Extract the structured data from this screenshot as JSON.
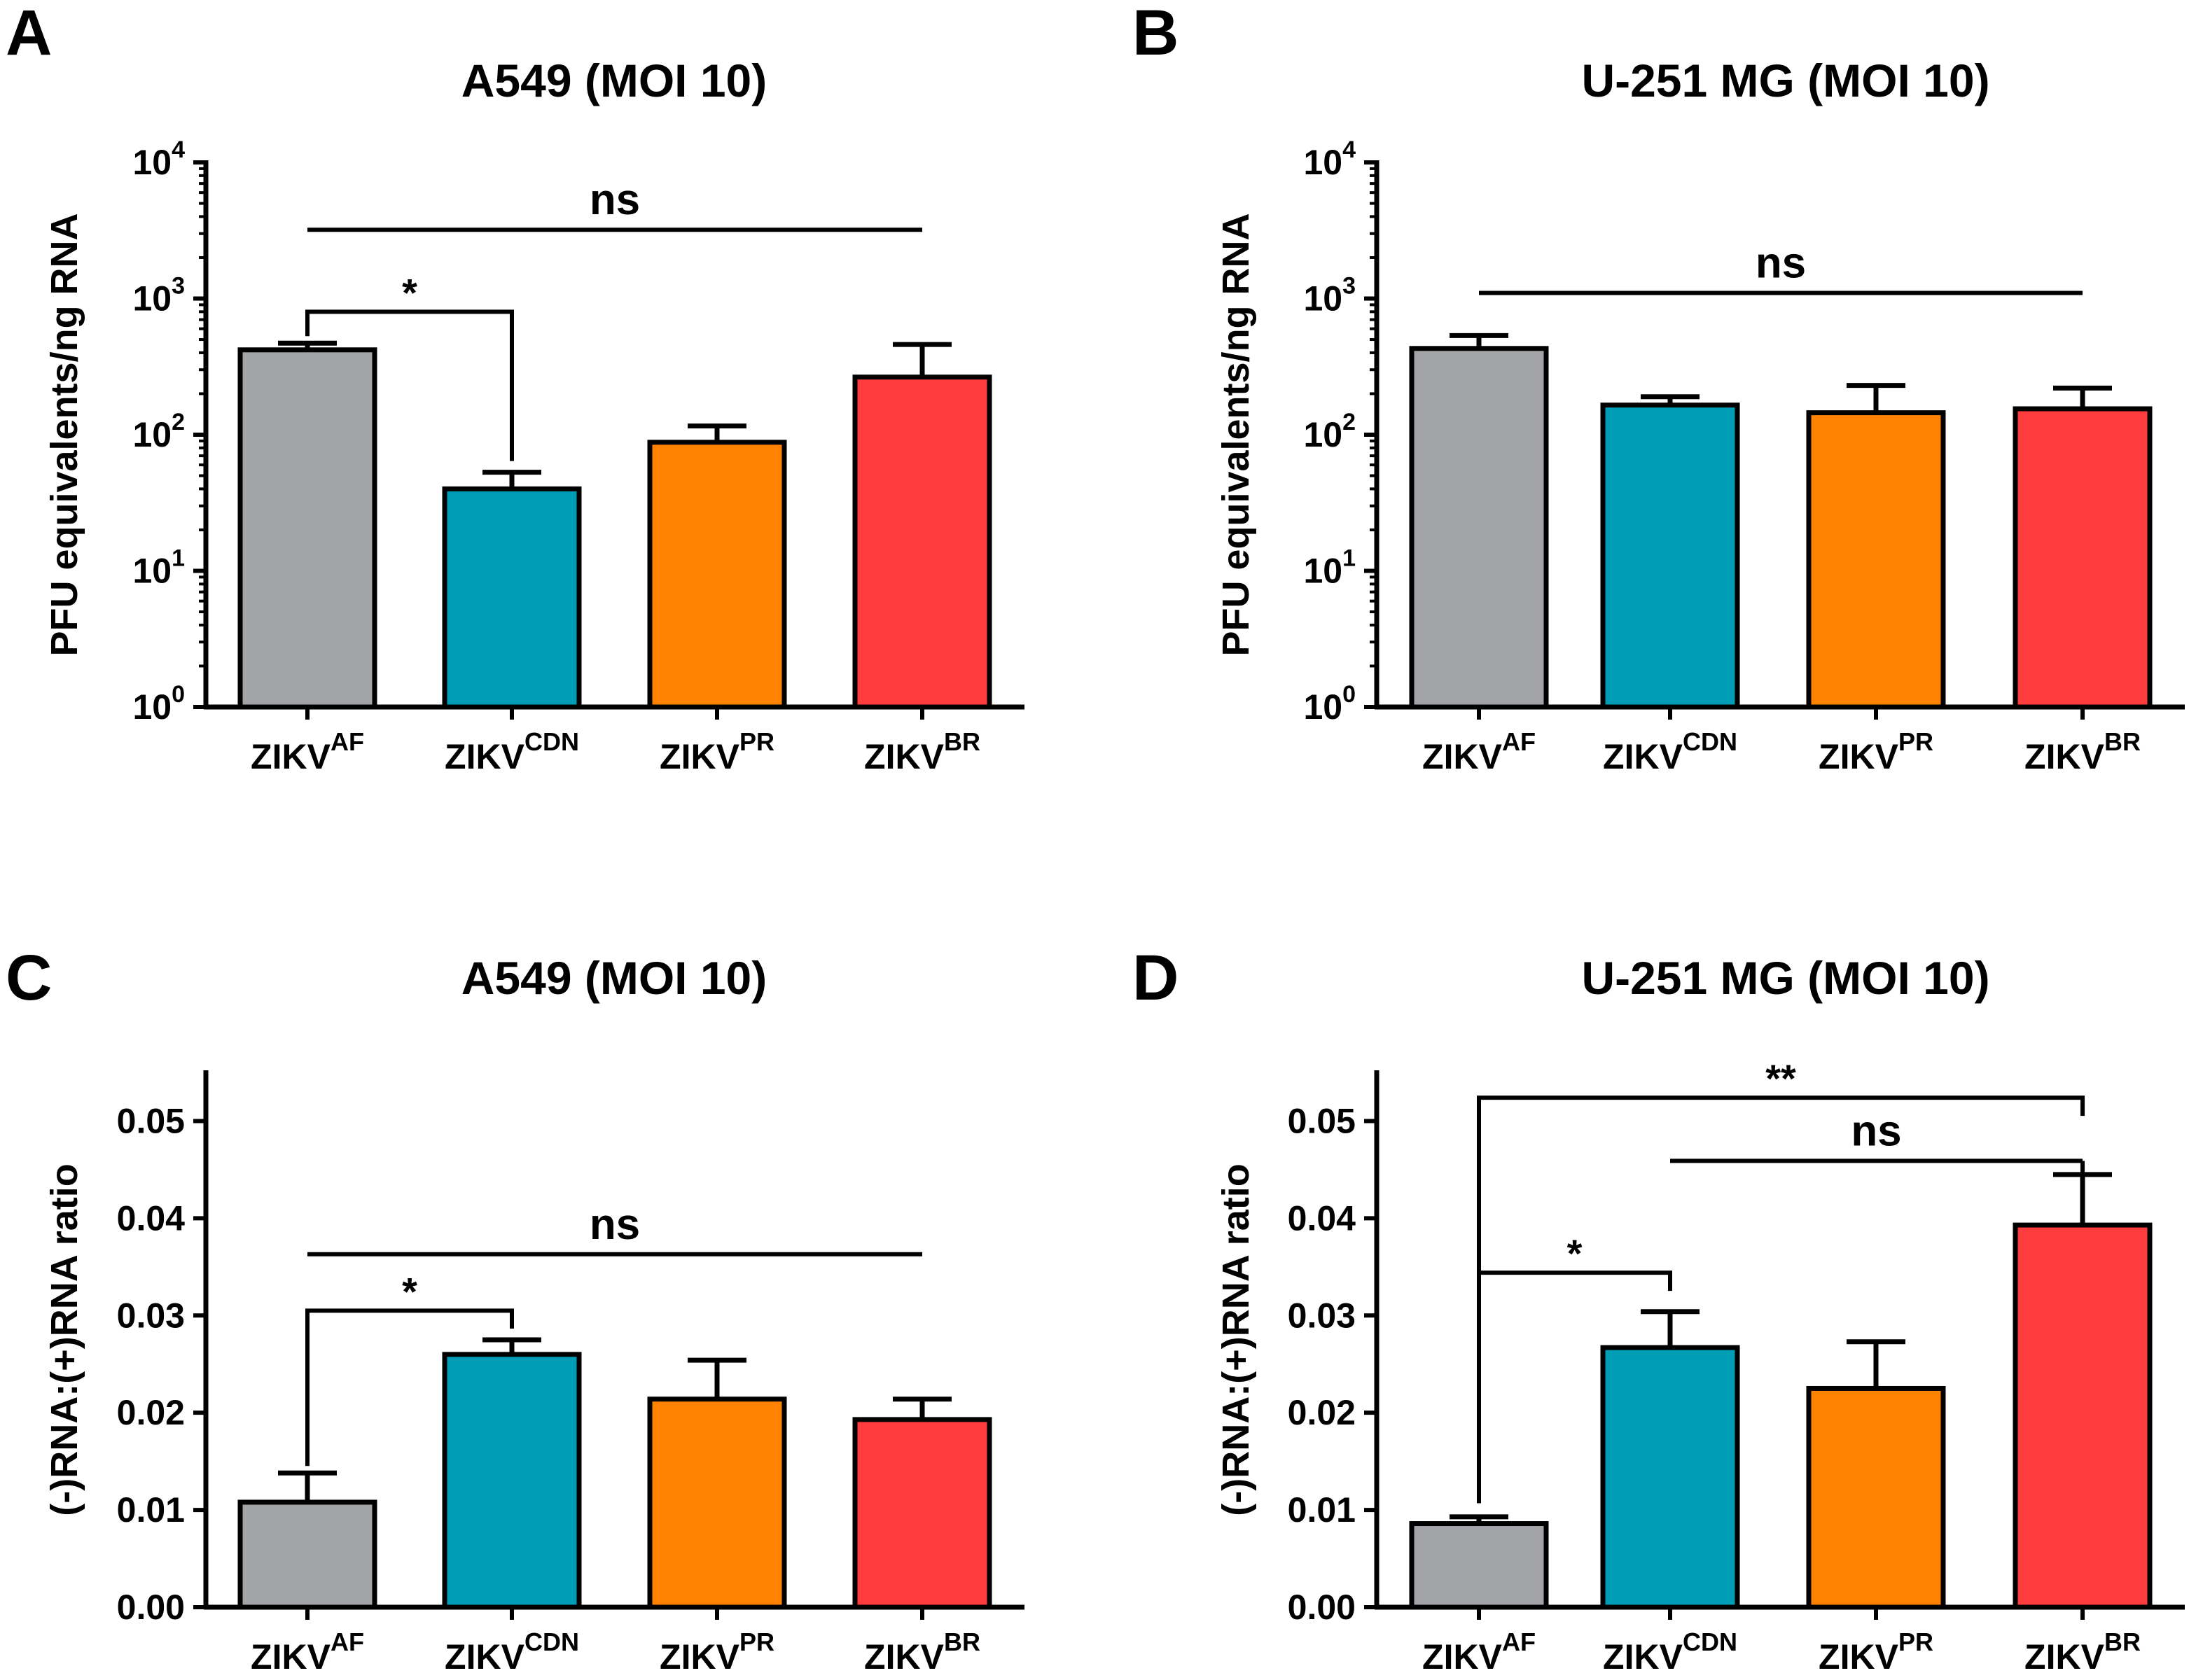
{
  "colors": {
    "ZIKV_AF": "#a3a4a8",
    "ZIKV_CDN": "#009db6",
    "ZIKV_PR": "#ff8300",
    "ZIKV_BR": "#ff3c3e",
    "axis": "#000000"
  },
  "chart_data": [
    {
      "panel": "A",
      "type": "bar",
      "title": "A549 (MOI 10)",
      "ylabel": "PFU equivalents/ng RNA",
      "xlabel": "",
      "yscale": "log",
      "ylim": [
        1,
        10000
      ],
      "yticks": [
        1,
        10,
        100,
        1000,
        10000
      ],
      "ytick_labels": [
        {
          "base": "10",
          "exp": "0"
        },
        {
          "base": "10",
          "exp": "1"
        },
        {
          "base": "10",
          "exp": "2"
        },
        {
          "base": "10",
          "exp": "3"
        },
        {
          "base": "10",
          "exp": "4"
        }
      ],
      "categories": [
        {
          "key": "ZIKV_AF",
          "base": "ZIKV",
          "sup": "AF"
        },
        {
          "key": "ZIKV_CDN",
          "base": "ZIKV",
          "sup": "CDN"
        },
        {
          "key": "ZIKV_PR",
          "base": "ZIKV",
          "sup": "PR"
        },
        {
          "key": "ZIKV_BR",
          "base": "ZIKV",
          "sup": "BR"
        }
      ],
      "values": [
        420,
        40,
        88,
        265
      ],
      "errors": [
        50,
        13,
        28,
        195
      ],
      "significance": [
        {
          "from": 0,
          "to": 1,
          "label": "*",
          "y": 800,
          "style": "bracket"
        },
        {
          "from": 0,
          "to": 3,
          "label": "ns",
          "y": 3200,
          "style": "line"
        }
      ]
    },
    {
      "panel": "B",
      "type": "bar",
      "title": "U-251 MG (MOI 10)",
      "ylabel": "PFU equivalents/ng RNA",
      "xlabel": "",
      "yscale": "log",
      "ylim": [
        1,
        10000
      ],
      "yticks": [
        1,
        10,
        100,
        1000,
        10000
      ],
      "ytick_labels": [
        {
          "base": "10",
          "exp": "0"
        },
        {
          "base": "10",
          "exp": "1"
        },
        {
          "base": "10",
          "exp": "2"
        },
        {
          "base": "10",
          "exp": "3"
        },
        {
          "base": "10",
          "exp": "4"
        }
      ],
      "categories": [
        {
          "key": "ZIKV_AF",
          "base": "ZIKV",
          "sup": "AF"
        },
        {
          "key": "ZIKV_CDN",
          "base": "ZIKV",
          "sup": "CDN"
        },
        {
          "key": "ZIKV_PR",
          "base": "ZIKV",
          "sup": "PR"
        },
        {
          "key": "ZIKV_BR",
          "base": "ZIKV",
          "sup": "BR"
        }
      ],
      "values": [
        430,
        165,
        145,
        155
      ],
      "errors": [
        105,
        25,
        85,
        65
      ],
      "significance": [
        {
          "from": 0,
          "to": 3,
          "label": "ns",
          "y": 1100,
          "style": "line"
        }
      ]
    },
    {
      "panel": "C",
      "type": "bar",
      "title": "A549 (MOI 10)",
      "ylabel": "(-)RNA:(+)RNA ratio",
      "xlabel": "",
      "yscale": "linear",
      "ylim": [
        0,
        0.055
      ],
      "yticks": [
        0,
        0.01,
        0.02,
        0.03,
        0.04,
        0.05
      ],
      "ytick_labels": [
        "0.00",
        "0.01",
        "0.02",
        "0.03",
        "0.04",
        "0.05"
      ],
      "categories": [
        {
          "key": "ZIKV_AF",
          "base": "ZIKV",
          "sup": "AF"
        },
        {
          "key": "ZIKV_CDN",
          "base": "ZIKV",
          "sup": "CDN"
        },
        {
          "key": "ZIKV_PR",
          "base": "ZIKV",
          "sup": "PR"
        },
        {
          "key": "ZIKV_BR",
          "base": "ZIKV",
          "sup": "BR"
        }
      ],
      "values": [
        0.0108,
        0.026,
        0.0214,
        0.0193
      ],
      "errors": [
        0.003,
        0.0015,
        0.004,
        0.0021
      ],
      "significance": [
        {
          "from": 0,
          "to": 1,
          "label": "*",
          "y": 0.0305,
          "style": "bracket"
        },
        {
          "from": 0,
          "to": 3,
          "label": "ns",
          "y": 0.0363,
          "style": "line"
        }
      ]
    },
    {
      "panel": "D",
      "type": "bar",
      "title": "U-251 MG (MOI 10)",
      "ylabel": "(-)RNA:(+)RNA ratio",
      "xlabel": "",
      "yscale": "linear",
      "ylim": [
        0,
        0.055
      ],
      "yticks": [
        0,
        0.01,
        0.02,
        0.03,
        0.04,
        0.05
      ],
      "ytick_labels": [
        "0.00",
        "0.01",
        "0.02",
        "0.03",
        "0.04",
        "0.05"
      ],
      "categories": [
        {
          "key": "ZIKV_AF",
          "base": "ZIKV",
          "sup": "AF"
        },
        {
          "key": "ZIKV_CDN",
          "base": "ZIKV",
          "sup": "CDN"
        },
        {
          "key": "ZIKV_PR",
          "base": "ZIKV",
          "sup": "PR"
        },
        {
          "key": "ZIKV_BR",
          "base": "ZIKV",
          "sup": "BR"
        }
      ],
      "values": [
        0.0086,
        0.0267,
        0.0225,
        0.0393
      ],
      "errors": [
        0.0007,
        0.0037,
        0.0048,
        0.0052
      ],
      "significance": [
        {
          "from": 0,
          "to": 1,
          "label": "*",
          "y": 0.0344,
          "style": "bracket-left",
          "from_bottom": 0.0014
        },
        {
          "from": 1,
          "to": 3,
          "label": "ns",
          "y": 0.0459,
          "style": "line-right"
        },
        {
          "from": 0,
          "to": 3,
          "label": "**",
          "y": 0.0524,
          "style": "bracket-left",
          "from_bottom": 0.0014
        }
      ]
    }
  ]
}
